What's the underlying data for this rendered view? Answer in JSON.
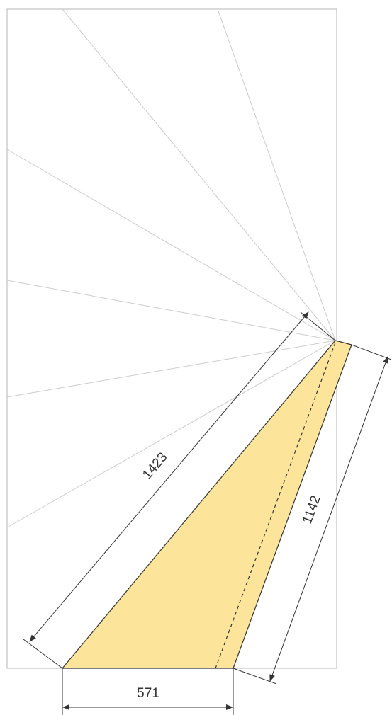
{
  "dimensions": {
    "long_side": "1423",
    "right_side": "1142",
    "base": "571"
  },
  "colors": {
    "panel_border": "#b5b5b5",
    "ray": "#cccccc",
    "fill": "#fde49b",
    "edge": "#333333",
    "dim_line": "#333333",
    "text": "#333333"
  }
}
